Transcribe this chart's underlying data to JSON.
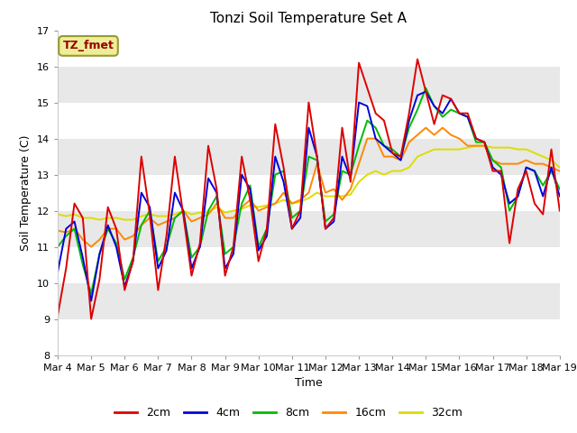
{
  "title": "Tonzi Soil Temperature Set A",
  "xlabel": "Time",
  "ylabel": "Soil Temperature (C)",
  "ylim": [
    8.0,
    17.0
  ],
  "yticks": [
    8.0,
    9.0,
    10.0,
    11.0,
    12.0,
    13.0,
    14.0,
    15.0,
    16.0,
    17.0
  ],
  "x_labels": [
    "Mar 4",
    "Mar 5",
    "Mar 6",
    "Mar 7",
    "Mar 8",
    "Mar 9",
    "Mar 10",
    "Mar 11",
    "Mar 12",
    "Mar 13",
    "Mar 14",
    "Mar 15",
    "Mar 16",
    "Mar 17",
    "Mar 18",
    "Mar 19"
  ],
  "series": {
    "2cm": {
      "color": "#dd0000",
      "linewidth": 1.4,
      "values": [
        9.1,
        10.4,
        12.2,
        11.8,
        9.0,
        10.1,
        12.1,
        11.5,
        9.8,
        10.6,
        13.5,
        11.9,
        9.8,
        11.3,
        13.5,
        11.9,
        10.2,
        11.1,
        13.8,
        12.6,
        10.2,
        11.0,
        13.5,
        12.3,
        10.6,
        11.5,
        14.4,
        13.2,
        11.5,
        12.0,
        15.0,
        13.5,
        11.5,
        11.8,
        14.3,
        12.8,
        16.1,
        15.4,
        14.7,
        14.5,
        13.6,
        13.5,
        14.7,
        16.2,
        15.3,
        14.4,
        15.2,
        15.1,
        14.7,
        14.7,
        14.0,
        13.9,
        13.1,
        13.1,
        11.1,
        12.6,
        13.1,
        12.2,
        11.9,
        13.7,
        12.0
      ]
    },
    "4cm": {
      "color": "#0000dd",
      "linewidth": 1.4,
      "values": [
        10.3,
        11.5,
        11.7,
        10.7,
        9.5,
        10.8,
        11.6,
        11.0,
        9.9,
        10.6,
        12.5,
        12.1,
        10.4,
        10.9,
        12.5,
        12.0,
        10.4,
        11.0,
        12.9,
        12.5,
        10.4,
        10.8,
        13.0,
        12.6,
        10.9,
        11.3,
        13.5,
        12.8,
        11.5,
        11.8,
        14.3,
        13.5,
        11.5,
        11.7,
        13.5,
        12.9,
        15.0,
        14.9,
        14.0,
        13.8,
        13.6,
        13.4,
        14.5,
        15.2,
        15.3,
        14.9,
        14.7,
        15.1,
        14.7,
        14.6,
        14.0,
        13.9,
        13.2,
        13.0,
        12.2,
        12.4,
        13.2,
        13.1,
        12.4,
        13.2,
        12.4
      ]
    },
    "8cm": {
      "color": "#00bb00",
      "linewidth": 1.4,
      "values": [
        11.0,
        11.3,
        11.5,
        10.5,
        9.7,
        10.8,
        11.5,
        11.1,
        10.1,
        10.7,
        11.6,
        12.0,
        10.6,
        11.0,
        11.8,
        12.0,
        10.7,
        11.0,
        12.0,
        12.4,
        10.8,
        11.0,
        12.2,
        12.7,
        11.0,
        11.5,
        13.0,
        13.1,
        11.8,
        12.0,
        13.5,
        13.4,
        11.7,
        11.9,
        13.1,
        13.0,
        13.8,
        14.5,
        14.3,
        13.8,
        13.7,
        13.5,
        14.3,
        14.8,
        15.4,
        14.9,
        14.6,
        14.8,
        14.7,
        14.6,
        13.9,
        13.9,
        13.4,
        13.2,
        12.0,
        12.4,
        13.2,
        13.1,
        12.7,
        13.1,
        12.6
      ]
    },
    "16cm": {
      "color": "#ff8800",
      "linewidth": 1.4,
      "values": [
        11.45,
        11.4,
        11.5,
        11.2,
        11.0,
        11.2,
        11.5,
        11.5,
        11.2,
        11.3,
        11.6,
        11.8,
        11.6,
        11.7,
        11.8,
        12.0,
        11.7,
        11.8,
        11.9,
        12.2,
        11.8,
        11.8,
        12.1,
        12.3,
        12.0,
        12.1,
        12.2,
        12.5,
        12.2,
        12.3,
        12.5,
        13.3,
        12.5,
        12.6,
        12.3,
        12.6,
        13.3,
        14.0,
        14.0,
        13.5,
        13.5,
        13.4,
        13.9,
        14.1,
        14.3,
        14.1,
        14.3,
        14.1,
        14.0,
        13.8,
        13.8,
        13.8,
        13.4,
        13.3,
        13.3,
        13.3,
        13.4,
        13.3,
        13.3,
        13.2,
        13.1
      ]
    },
    "32cm": {
      "color": "#dddd00",
      "linewidth": 1.4,
      "values": [
        11.9,
        11.85,
        11.9,
        11.8,
        11.8,
        11.75,
        11.8,
        11.8,
        11.75,
        11.75,
        11.85,
        11.9,
        11.85,
        11.85,
        11.9,
        12.0,
        11.9,
        11.95,
        11.95,
        12.1,
        11.95,
        12.0,
        12.05,
        12.15,
        12.1,
        12.15,
        12.2,
        12.3,
        12.2,
        12.25,
        12.35,
        12.5,
        12.4,
        12.4,
        12.4,
        12.45,
        12.8,
        13.0,
        13.1,
        13.0,
        13.1,
        13.1,
        13.2,
        13.5,
        13.6,
        13.7,
        13.7,
        13.7,
        13.7,
        13.75,
        13.8,
        13.8,
        13.75,
        13.75,
        13.75,
        13.7,
        13.7,
        13.6,
        13.5,
        13.4,
        13.2
      ]
    }
  },
  "legend_label": "TZ_fmet",
  "legend_bbox_facecolor": "#eeee99",
  "legend_bbox_edgecolor": "#999933",
  "legend_text_color": "#990000",
  "figure_facecolor": "#ffffff",
  "plot_facecolor": "#ffffff",
  "band_colors": [
    "#ffffff",
    "#e8e8e8"
  ],
  "grid_color": "#e0e0e0",
  "n_points": 61,
  "x_tick_positions": [
    0,
    4,
    8,
    12,
    16,
    20,
    24,
    28,
    32,
    36,
    40,
    44,
    48,
    52,
    56,
    60
  ],
  "figsize": [
    6.4,
    4.8
  ],
  "dpi": 100
}
